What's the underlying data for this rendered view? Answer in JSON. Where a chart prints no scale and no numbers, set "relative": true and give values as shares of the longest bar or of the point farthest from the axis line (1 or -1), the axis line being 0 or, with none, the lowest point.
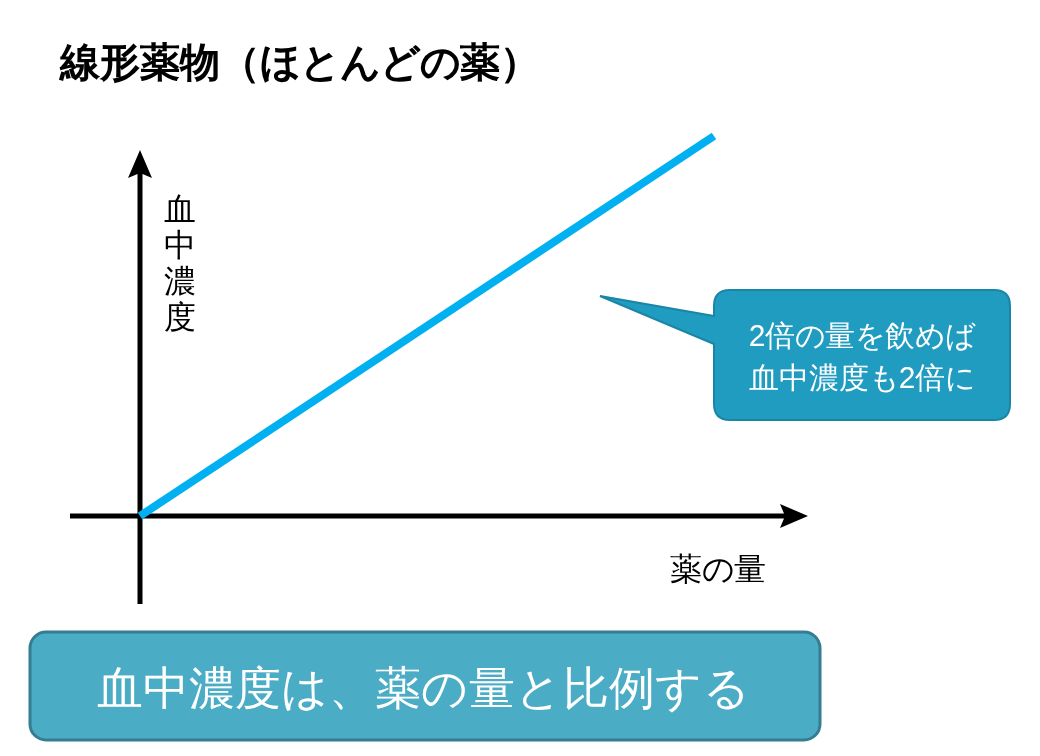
{
  "chart_data": {
    "type": "line",
    "title": "線形薬物（ほとんどの薬）",
    "xlabel": "薬の量",
    "ylabel": "血中濃度",
    "categories": [
      null,
      null
    ],
    "relative": true,
    "series": [
      {
        "color": "#00b0f0",
        "values": [
          0,
          1
        ]
      }
    ],
    "annotations": [
      "2倍の量を飲めば血中濃度も2倍に",
      "血中濃度は、薬の量と比例する"
    ]
  }
}
